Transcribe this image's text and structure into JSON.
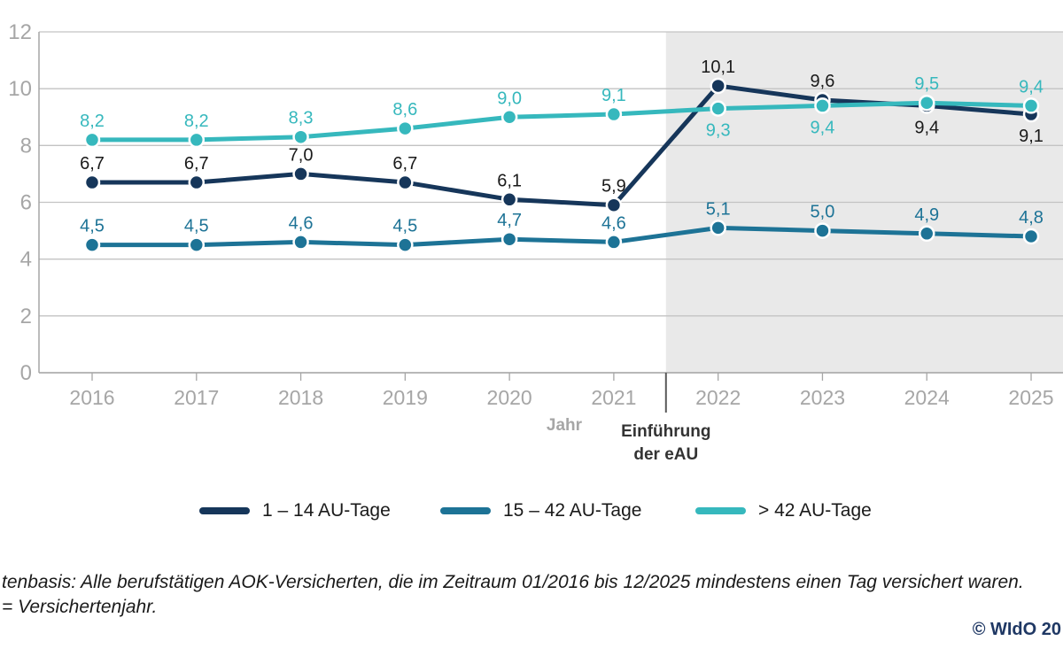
{
  "chart_data": {
    "type": "line",
    "title": "",
    "xlabel": "Jahr",
    "categories": [
      "2016",
      "2017",
      "2018",
      "2019",
      "2020",
      "2021",
      "2022",
      "2023",
      "2024",
      "2025"
    ],
    "ylim": [
      0,
      12
    ],
    "yticks": [
      0,
      2,
      4,
      6,
      8,
      10,
      12
    ],
    "grid": true,
    "legend_position": "bottom",
    "shaded_region": {
      "from_category_boundary": "2021/2022",
      "to": "right-edge",
      "color": "#e9e9e9",
      "annotation_line1": "Einführung",
      "annotation_line2": "der eAU"
    },
    "series": [
      {
        "name": "1 – 14 AU-Tage",
        "color": "#16365a",
        "label_color": "#1a1a1a",
        "values": [
          6.7,
          6.7,
          7.0,
          6.7,
          6.1,
          5.9,
          10.1,
          9.6,
          9.4,
          9.1
        ],
        "labels": [
          "6,7",
          "6,7",
          "7,0",
          "6,7",
          "6,1",
          "5,9",
          "10,1",
          "9,6",
          "9,4",
          "9,1"
        ],
        "label_pos": [
          "above",
          "above",
          "above",
          "above",
          "above",
          "above",
          "above",
          "above",
          "below",
          "below"
        ]
      },
      {
        "name": "15 – 42 AU-Tage",
        "color": "#1d7396",
        "label_color": "#1d7396",
        "values": [
          4.5,
          4.5,
          4.6,
          4.5,
          4.7,
          4.6,
          5.1,
          5.0,
          4.9,
          4.8
        ],
        "labels": [
          "4,5",
          "4,5",
          "4,6",
          "4,5",
          "4,7",
          "4,6",
          "5,1",
          "5,0",
          "4,9",
          "4,8"
        ],
        "label_pos": [
          "above",
          "above",
          "above",
          "above",
          "above",
          "above",
          "above",
          "above",
          "above",
          "above"
        ]
      },
      {
        "name": "> 42 AU-Tage",
        "color": "#36b8bd",
        "label_color": "#36b8bd",
        "values": [
          8.2,
          8.2,
          8.3,
          8.6,
          9.0,
          9.1,
          9.3,
          9.4,
          9.5,
          9.4
        ],
        "labels": [
          "8,2",
          "8,2",
          "8,3",
          "8,6",
          "9,0",
          "9,1",
          "9,3",
          "9,4",
          "9,5",
          "9,4"
        ],
        "label_pos": [
          "above",
          "above",
          "above",
          "above",
          "above",
          "above",
          "below",
          "below",
          "above",
          "above"
        ]
      }
    ],
    "colors": {
      "axis": "#a6a6a6",
      "grid": "#c3c3c3",
      "tick_label": "#a6a6a6",
      "annotation_text": "#333333",
      "separator_line": "#595959"
    }
  },
  "footer": {
    "line1": "tenbasis: Alle berufstätigen AOK-Versicherten, die im Zeitraum 01/2016 bis 12/2025 mindestens einen Tag versichert waren.",
    "line2": "= Versichertenjahr."
  },
  "copyright": "© WIdO 20"
}
